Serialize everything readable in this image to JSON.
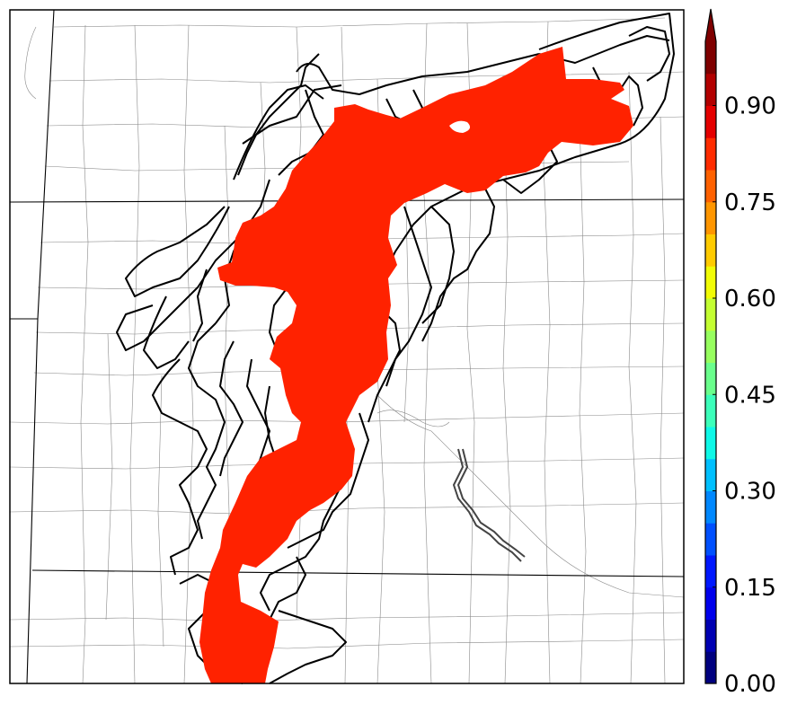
{
  "colorbar": {
    "ticks": [
      "0.00",
      "0.15",
      "0.30",
      "0.45",
      "0.60",
      "0.75",
      "0.90"
    ],
    "levels": [
      0.0,
      0.05,
      0.1,
      0.15,
      0.2,
      0.25,
      0.3,
      0.35,
      0.4,
      0.45,
      0.5,
      0.55,
      0.6,
      0.65,
      0.7,
      0.75,
      0.8,
      0.85,
      0.9,
      0.95,
      1.0
    ],
    "extend": "max",
    "colormap": [
      "#00007f",
      "#0000b2",
      "#0000ec",
      "#0018ff",
      "#0050ff",
      "#0088ff",
      "#00c0ff",
      "#0ff8e7",
      "#3cffba",
      "#6aff8c",
      "#97ff5f",
      "#c4ff32",
      "#f1fc06",
      "#ffcb00",
      "#ff9600",
      "#ff6100",
      "#ff2c00",
      "#e40000",
      "#b20000",
      "#7f0000"
    ],
    "over_color": "#7f0000"
  },
  "map": {
    "fill_color": "#ff2200",
    "contour_color": "#000000",
    "border_color": "#888888",
    "state_line_color": "#000000",
    "river_color": "#444444"
  }
}
